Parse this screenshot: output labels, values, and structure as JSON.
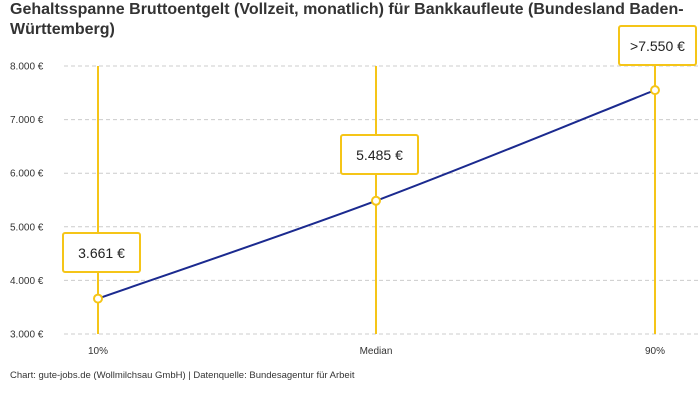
{
  "title": "Gehaltsspanne Bruttoentgelt (Vollzeit, monatlich) für Bankkaufleute (Bundesland Baden-Württemberg)",
  "footer": "Chart: gute-jobs.de (Wollmilchsau GmbH) | Datenquelle: Bundesagentur für Arbeit",
  "chart_data": {
    "type": "line",
    "categories": [
      "10%",
      "Median",
      "90%"
    ],
    "values": [
      3661,
      5485,
      7550
    ],
    "data_labels": [
      "3.661 €",
      "5.485 €",
      ">7.550 €"
    ],
    "ylim": [
      3000,
      8000
    ],
    "yticks": [
      3000,
      4000,
      5000,
      6000,
      7000,
      8000
    ],
    "ytick_labels": [
      "3.000 €",
      "4.000 €",
      "5.000 €",
      "6.000 €",
      "7.000 €",
      "8.000 €"
    ],
    "grid": "horizontal dashed",
    "colors": {
      "line": "#1b2a8f",
      "marker": "#f5c518",
      "grid": "#cccccc"
    }
  }
}
